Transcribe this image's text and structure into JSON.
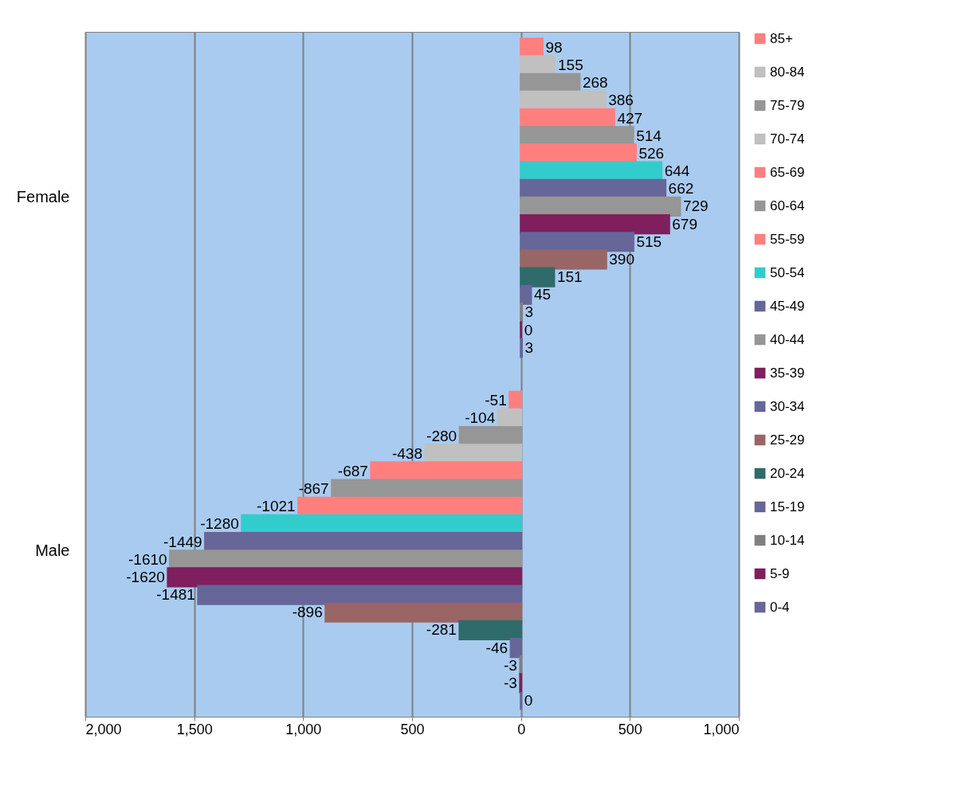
{
  "chart_data": {
    "type": "bar",
    "orientation": "horizontal",
    "categories": [
      "Female",
      "Male"
    ],
    "xlim": [
      -2000,
      1000
    ],
    "xticks": [
      {
        "value": -2000,
        "label": "2,000"
      },
      {
        "value": -1500,
        "label": "1,500"
      },
      {
        "value": -1000,
        "label": "1,000"
      },
      {
        "value": -500,
        "label": "500"
      },
      0,
      500,
      {
        "value": 1000,
        "label": "1,000"
      }
    ],
    "grid": "x",
    "legend": "right",
    "data_labels": true,
    "series": [
      {
        "name": "85+",
        "color": "#ff7f7f",
        "values": [
          98,
          -51
        ]
      },
      {
        "name": "80-84",
        "color": "#c0c0c0",
        "values": [
          155,
          -104
        ]
      },
      {
        "name": "75-79",
        "color": "#969696",
        "values": [
          268,
          -280
        ]
      },
      {
        "name": "70-74",
        "color": "#c0c0c0",
        "values": [
          386,
          -438
        ]
      },
      {
        "name": "65-69",
        "color": "#ff7f7f",
        "values": [
          427,
          -687
        ]
      },
      {
        "name": "60-64",
        "color": "#969696",
        "values": [
          514,
          -867
        ]
      },
      {
        "name": "55-59",
        "color": "#ff7f7f",
        "values": [
          526,
          -1021
        ]
      },
      {
        "name": "50-54",
        "color": "#33cccc",
        "values": [
          644,
          -1280
        ]
      },
      {
        "name": "45-49",
        "color": "#666699",
        "values": [
          662,
          -1449
        ]
      },
      {
        "name": "40-44",
        "color": "#969696",
        "values": [
          729,
          -1610
        ]
      },
      {
        "name": "35-39",
        "color": "#801f5e",
        "values": [
          679,
          -1620
        ]
      },
      {
        "name": "30-34",
        "color": "#666699",
        "values": [
          515,
          -1481
        ]
      },
      {
        "name": "25-29",
        "color": "#996666",
        "values": [
          390,
          -896
        ]
      },
      {
        "name": "20-24",
        "color": "#2f6b6b",
        "values": [
          151,
          -281
        ]
      },
      {
        "name": "15-19",
        "color": "#666699",
        "values": [
          45,
          -46
        ]
      },
      {
        "name": "10-14",
        "color": "#808080",
        "values": [
          3,
          -3
        ]
      },
      {
        "name": "5-9",
        "color": "#7f1f5f",
        "values": [
          0,
          -3
        ]
      },
      {
        "name": "0-4",
        "color": "#666699",
        "values": [
          3,
          0
        ]
      }
    ]
  }
}
